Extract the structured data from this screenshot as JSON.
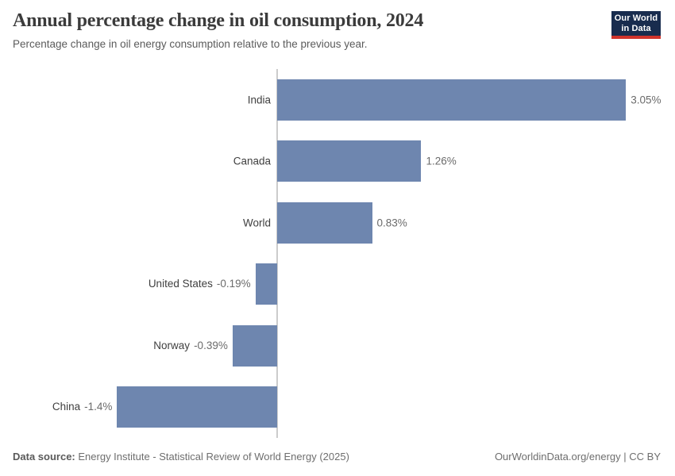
{
  "header": {
    "title": "Annual percentage change in oil consumption, 2024",
    "subtitle": "Percentage change in oil energy consumption relative to the previous year.",
    "logo": {
      "line1": "Our World",
      "line2": "in Data",
      "bg_color": "#182c4e",
      "accent_color": "#d0342c"
    }
  },
  "chart_data": {
    "type": "bar",
    "orientation": "horizontal",
    "title": "Annual percentage change in oil consumption, 2024",
    "categories": [
      "India",
      "Canada",
      "World",
      "United States",
      "Norway",
      "China"
    ],
    "values": [
      3.05,
      1.26,
      0.83,
      -0.19,
      -0.39,
      -1.4
    ],
    "value_labels": [
      "3.05%",
      "1.26%",
      "0.83%",
      "-0.19%",
      "-0.39%",
      "-1.4%"
    ],
    "unit": "%",
    "xlim": [
      -1.6,
      3.5
    ],
    "grid": false,
    "legend": "none",
    "value_label_position": "outside-end",
    "bar_color": "#6e86af",
    "zero_line_color": "#cccccc"
  },
  "footer": {
    "source_label": "Data source:",
    "source_text": "Energy Institute - Statistical Review of World Energy (2025)",
    "credit_text": "OurWorldinData.org/energy | CC BY"
  }
}
